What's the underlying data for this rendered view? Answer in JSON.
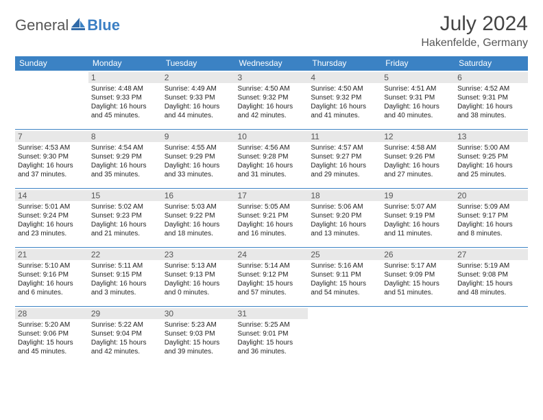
{
  "brand": {
    "part1": "General",
    "part2": "Blue"
  },
  "title": "July 2024",
  "location": "Hakenfelde, Germany",
  "colors": {
    "header_bg": "#3b82c4",
    "header_text": "#ffffff",
    "daynum_bg": "#e8e8e8",
    "border": "#3b82c4",
    "body_text": "#222222",
    "page_bg": "#ffffff"
  },
  "typography": {
    "title_fontsize": 30,
    "location_fontsize": 16,
    "weekday_fontsize": 12,
    "daynum_fontsize": 12,
    "cell_fontsize": 10
  },
  "weekdays": [
    "Sunday",
    "Monday",
    "Tuesday",
    "Wednesday",
    "Thursday",
    "Friday",
    "Saturday"
  ],
  "weeks": [
    [
      null,
      {
        "n": "1",
        "sr": "4:48 AM",
        "ss": "9:33 PM",
        "dl": "16 hours and 45 minutes."
      },
      {
        "n": "2",
        "sr": "4:49 AM",
        "ss": "9:33 PM",
        "dl": "16 hours and 44 minutes."
      },
      {
        "n": "3",
        "sr": "4:50 AM",
        "ss": "9:32 PM",
        "dl": "16 hours and 42 minutes."
      },
      {
        "n": "4",
        "sr": "4:50 AM",
        "ss": "9:32 PM",
        "dl": "16 hours and 41 minutes."
      },
      {
        "n": "5",
        "sr": "4:51 AM",
        "ss": "9:31 PM",
        "dl": "16 hours and 40 minutes."
      },
      {
        "n": "6",
        "sr": "4:52 AM",
        "ss": "9:31 PM",
        "dl": "16 hours and 38 minutes."
      }
    ],
    [
      {
        "n": "7",
        "sr": "4:53 AM",
        "ss": "9:30 PM",
        "dl": "16 hours and 37 minutes."
      },
      {
        "n": "8",
        "sr": "4:54 AM",
        "ss": "9:29 PM",
        "dl": "16 hours and 35 minutes."
      },
      {
        "n": "9",
        "sr": "4:55 AM",
        "ss": "9:29 PM",
        "dl": "16 hours and 33 minutes."
      },
      {
        "n": "10",
        "sr": "4:56 AM",
        "ss": "9:28 PM",
        "dl": "16 hours and 31 minutes."
      },
      {
        "n": "11",
        "sr": "4:57 AM",
        "ss": "9:27 PM",
        "dl": "16 hours and 29 minutes."
      },
      {
        "n": "12",
        "sr": "4:58 AM",
        "ss": "9:26 PM",
        "dl": "16 hours and 27 minutes."
      },
      {
        "n": "13",
        "sr": "5:00 AM",
        "ss": "9:25 PM",
        "dl": "16 hours and 25 minutes."
      }
    ],
    [
      {
        "n": "14",
        "sr": "5:01 AM",
        "ss": "9:24 PM",
        "dl": "16 hours and 23 minutes."
      },
      {
        "n": "15",
        "sr": "5:02 AM",
        "ss": "9:23 PM",
        "dl": "16 hours and 21 minutes."
      },
      {
        "n": "16",
        "sr": "5:03 AM",
        "ss": "9:22 PM",
        "dl": "16 hours and 18 minutes."
      },
      {
        "n": "17",
        "sr": "5:05 AM",
        "ss": "9:21 PM",
        "dl": "16 hours and 16 minutes."
      },
      {
        "n": "18",
        "sr": "5:06 AM",
        "ss": "9:20 PM",
        "dl": "16 hours and 13 minutes."
      },
      {
        "n": "19",
        "sr": "5:07 AM",
        "ss": "9:19 PM",
        "dl": "16 hours and 11 minutes."
      },
      {
        "n": "20",
        "sr": "5:09 AM",
        "ss": "9:17 PM",
        "dl": "16 hours and 8 minutes."
      }
    ],
    [
      {
        "n": "21",
        "sr": "5:10 AM",
        "ss": "9:16 PM",
        "dl": "16 hours and 6 minutes."
      },
      {
        "n": "22",
        "sr": "5:11 AM",
        "ss": "9:15 PM",
        "dl": "16 hours and 3 minutes."
      },
      {
        "n": "23",
        "sr": "5:13 AM",
        "ss": "9:13 PM",
        "dl": "16 hours and 0 minutes."
      },
      {
        "n": "24",
        "sr": "5:14 AM",
        "ss": "9:12 PM",
        "dl": "15 hours and 57 minutes."
      },
      {
        "n": "25",
        "sr": "5:16 AM",
        "ss": "9:11 PM",
        "dl": "15 hours and 54 minutes."
      },
      {
        "n": "26",
        "sr": "5:17 AM",
        "ss": "9:09 PM",
        "dl": "15 hours and 51 minutes."
      },
      {
        "n": "27",
        "sr": "5:19 AM",
        "ss": "9:08 PM",
        "dl": "15 hours and 48 minutes."
      }
    ],
    [
      {
        "n": "28",
        "sr": "5:20 AM",
        "ss": "9:06 PM",
        "dl": "15 hours and 45 minutes."
      },
      {
        "n": "29",
        "sr": "5:22 AM",
        "ss": "9:04 PM",
        "dl": "15 hours and 42 minutes."
      },
      {
        "n": "30",
        "sr": "5:23 AM",
        "ss": "9:03 PM",
        "dl": "15 hours and 39 minutes."
      },
      {
        "n": "31",
        "sr": "5:25 AM",
        "ss": "9:01 PM",
        "dl": "15 hours and 36 minutes."
      },
      null,
      null,
      null
    ]
  ],
  "labels": {
    "sunrise": "Sunrise:",
    "sunset": "Sunset:",
    "daylight": "Daylight:"
  }
}
